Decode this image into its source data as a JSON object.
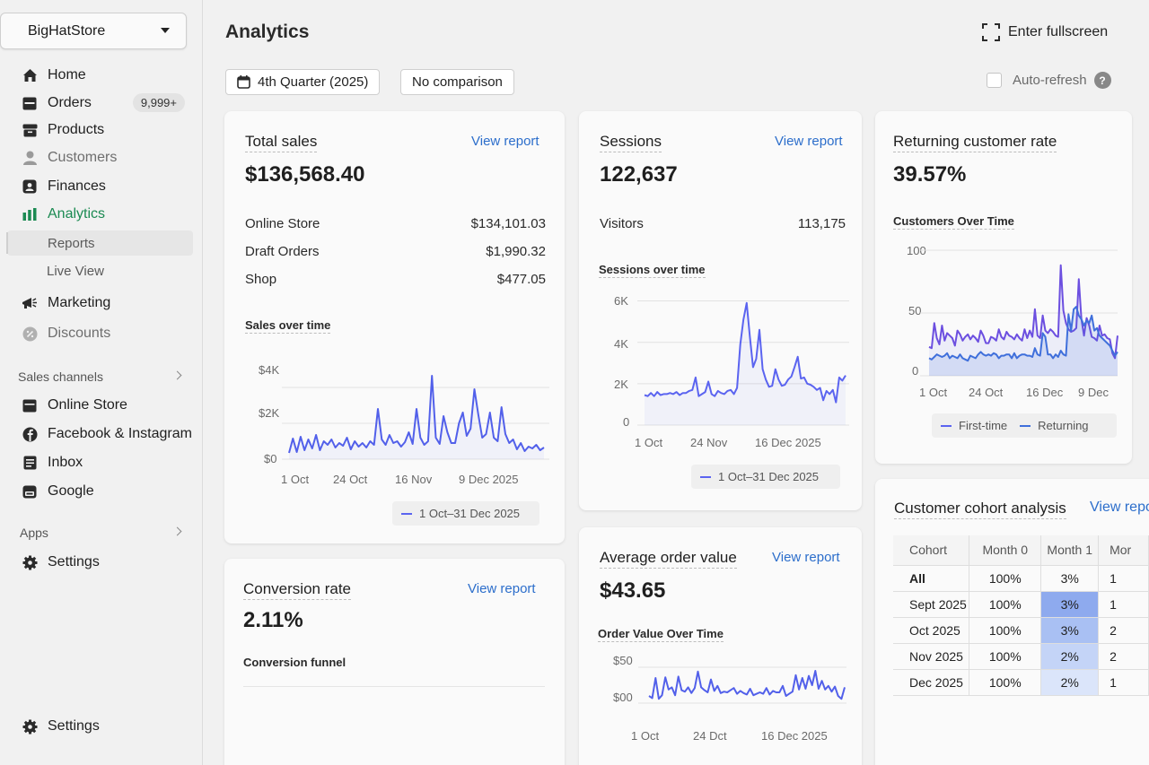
{
  "store": {
    "name": "BigHatStore"
  },
  "nav": {
    "home": "Home",
    "orders": "Orders",
    "orders_badge": "9,999+",
    "products": "Products",
    "customers": "Customers",
    "finances": "Finances",
    "analytics": "Analytics",
    "reports": "Reports",
    "live_view": "Live View",
    "marketing": "Marketing",
    "discounts": "Discounts",
    "sales_channels": "Sales channels",
    "online_store": "Online Store",
    "facebook": "Facebook & Instagram",
    "inbox": "Inbox",
    "google": "Google",
    "apps": "Apps",
    "settings_top": "Settings",
    "settings_bottom": "Settings"
  },
  "header": {
    "title": "Analytics",
    "fullscreen": "Enter fullscreen",
    "date_range": "4th Quarter (2025)",
    "comparison": "No comparison",
    "auto_refresh": "Auto-refresh",
    "help": "?"
  },
  "colors": {
    "accent": "#5b64f0",
    "link": "#2c6ecb",
    "active_nav": "#1b8a52"
  },
  "total_sales": {
    "title": "Total sales",
    "view": "View report",
    "value": "$136,568.40",
    "rows": [
      {
        "label": "Online Store",
        "value": "$134,101.03"
      },
      {
        "label": "Draft Orders",
        "value": "$1,990.32"
      },
      {
        "label": "Shop",
        "value": "$477.05"
      }
    ],
    "chart_title": "Sales over time",
    "legend": "1 Oct–31 Dec 2025"
  },
  "sessions": {
    "title": "Sessions",
    "view": "View report",
    "value": "122,637",
    "visitors_label": "Visitors",
    "visitors_value": "113,175",
    "chart_title": "Sessions over time",
    "legend": "1 Oct–31 Dec 2025"
  },
  "returning": {
    "title": "Returning customer rate",
    "value": "39.57%",
    "chart_title": "Customers Over Time",
    "legend_first": "First-time",
    "legend_returning": "Returning"
  },
  "conversion": {
    "title": "Conversion rate",
    "view": "View report",
    "value": "2.11%",
    "funnel": "Conversion funnel"
  },
  "aov": {
    "title": "Average order value",
    "view": "View report",
    "value": "$43.65",
    "chart_title": "Order Value Over Time"
  },
  "cohort": {
    "title": "Customer cohort analysis",
    "view": "View repo",
    "headers": [
      "Cohort",
      "Month 0",
      "Month 1",
      "Mor"
    ],
    "rows": [
      [
        "All",
        "100%",
        "3%",
        "1"
      ],
      [
        "Sept 2025",
        "100%",
        "3%",
        "1"
      ],
      [
        "Oct 2025",
        "100%",
        "3%",
        "2"
      ],
      [
        "Nov 2025",
        "100%",
        "2%",
        "2"
      ],
      [
        "Dec 2025",
        "100%",
        "2%",
        "1"
      ]
    ],
    "month1_values": [
      3,
      3,
      3,
      2,
      2
    ]
  },
  "chart_data": [
    {
      "type": "line",
      "title": "Sales over time",
      "xlabel": "",
      "ylabel": "",
      "x_ticks": [
        "1 Oct",
        "24 Oct",
        "16 Nov",
        "9 Dec 2025"
      ],
      "y_ticks": [
        "$0",
        "$2K",
        "$4K"
      ],
      "ylim": [
        0,
        5000
      ],
      "series": [
        {
          "name": "1 Oct–31 Dec 2025",
          "values": [
            350,
            1150,
            400,
            1250,
            500,
            1100,
            600,
            1350,
            500,
            1000,
            800,
            1100,
            650,
            900,
            750,
            1200,
            550,
            1000,
            700,
            900,
            650,
            1000,
            800,
            2800,
            1100,
            800,
            1350,
            900,
            1000,
            700,
            950,
            1500,
            850,
            2800,
            1200,
            800,
            1000,
            4650,
            1200,
            850,
            2400,
            1500,
            900,
            900,
            2000,
            2600,
            1300,
            1700,
            3900,
            2500,
            1200,
            1400,
            2600,
            1200,
            1000,
            2900,
            1400,
            900,
            1100,
            550,
            900,
            450,
            700,
            600,
            800,
            500,
            650
          ]
        }
      ]
    },
    {
      "type": "line",
      "title": "Sessions over time",
      "xlabel": "",
      "ylabel": "",
      "x_ticks": [
        "1 Oct",
        "24 Nov",
        "16 Dec 2025"
      ],
      "y_ticks": [
        "0",
        "2K",
        "4K",
        "6K"
      ],
      "ylim": [
        0,
        6500
      ],
      "series": [
        {
          "name": "1 Oct–31 Dec 2025",
          "values": [
            1450,
            1400,
            1550,
            1400,
            1600,
            1450,
            1500,
            1500,
            1550,
            1500,
            1600,
            1450,
            1550,
            1550,
            1650,
            1700,
            2300,
            1400,
            1500,
            1600,
            2100,
            1500,
            1400,
            1650,
            1550,
            1500,
            1650,
            1700,
            1500,
            1800,
            3900,
            5100,
            5900,
            4300,
            2800,
            3200,
            4600,
            2700,
            2200,
            1850,
            1900,
            2700,
            2200,
            1900,
            1950,
            2200,
            2350,
            2800,
            3300,
            2250,
            2300,
            2000,
            1950,
            1850,
            1700,
            1800,
            1200,
            1650,
            1500,
            1700,
            1100,
            2300,
            2150,
            2400
          ]
        }
      ]
    },
    {
      "type": "area",
      "title": "Customers Over Time",
      "xlabel": "",
      "ylabel": "",
      "x_ticks": [
        "1 Oct",
        "24 Oct",
        "16 Dec",
        "9 Dec"
      ],
      "y_ticks": [
        "0",
        "50",
        "100"
      ],
      "ylim": [
        0,
        100
      ],
      "series": [
        {
          "name": "First-time",
          "values": [
            23,
            22,
            42,
            30,
            25,
            40,
            28,
            34,
            32,
            30,
            24,
            36,
            33,
            28,
            31,
            33,
            29,
            32,
            30,
            27,
            36,
            32,
            26,
            26,
            31,
            30,
            28,
            37,
            31,
            29,
            35,
            32,
            31,
            29,
            33,
            30,
            28,
            37,
            30,
            36,
            31,
            53,
            32,
            30,
            48,
            36,
            34,
            37,
            35,
            32,
            31,
            88,
            52,
            42,
            37,
            35,
            36,
            38,
            77,
            45,
            32,
            46,
            40,
            31,
            30,
            28,
            40,
            32,
            33,
            30,
            29,
            18,
            14,
            32
          ]
        },
        {
          "name": "Returning",
          "values": [
            14,
            13,
            15,
            17,
            16,
            15,
            16,
            18,
            14,
            16,
            15,
            14,
            17,
            14,
            13,
            12,
            16,
            15,
            14,
            17,
            19,
            17,
            16,
            17,
            16,
            18,
            17,
            14,
            16,
            16,
            17,
            17,
            14,
            18,
            14,
            16,
            17,
            17,
            16,
            16,
            15,
            22,
            17,
            16,
            34,
            31,
            17,
            17,
            14,
            17,
            15,
            20,
            17,
            16,
            49,
            36,
            53,
            55,
            48,
            45,
            40,
            44,
            42,
            48,
            36,
            38,
            32,
            30,
            28,
            26,
            24,
            20,
            16,
            19
          ]
        }
      ]
    },
    {
      "type": "line",
      "title": "Order Value Over Time",
      "xlabel": "",
      "ylabel": "",
      "x_ticks": [
        "1 Oct",
        "24 Dct",
        "16 Dec 2025"
      ],
      "y_ticks": [
        "$00",
        "$50"
      ],
      "ylim": [
        0,
        100
      ],
      "series": [
        {
          "name": "Average order value",
          "values": [
            20,
            14,
            70,
            12,
            22,
            72,
            38,
            44,
            22,
            74,
            36,
            32,
            44,
            28,
            42,
            88,
            44,
            36,
            30,
            66,
            34,
            48,
            28,
            32,
            30,
            36,
            42,
            26,
            34,
            28,
            24,
            40,
            22,
            26,
            30,
            26,
            42,
            24,
            34,
            30,
            30,
            48,
            20,
            26,
            32,
            78,
            38,
            70,
            40,
            76,
            50,
            90,
            40,
            62,
            38,
            48,
            32,
            46,
            20,
            12,
            44
          ]
        }
      ]
    }
  ]
}
